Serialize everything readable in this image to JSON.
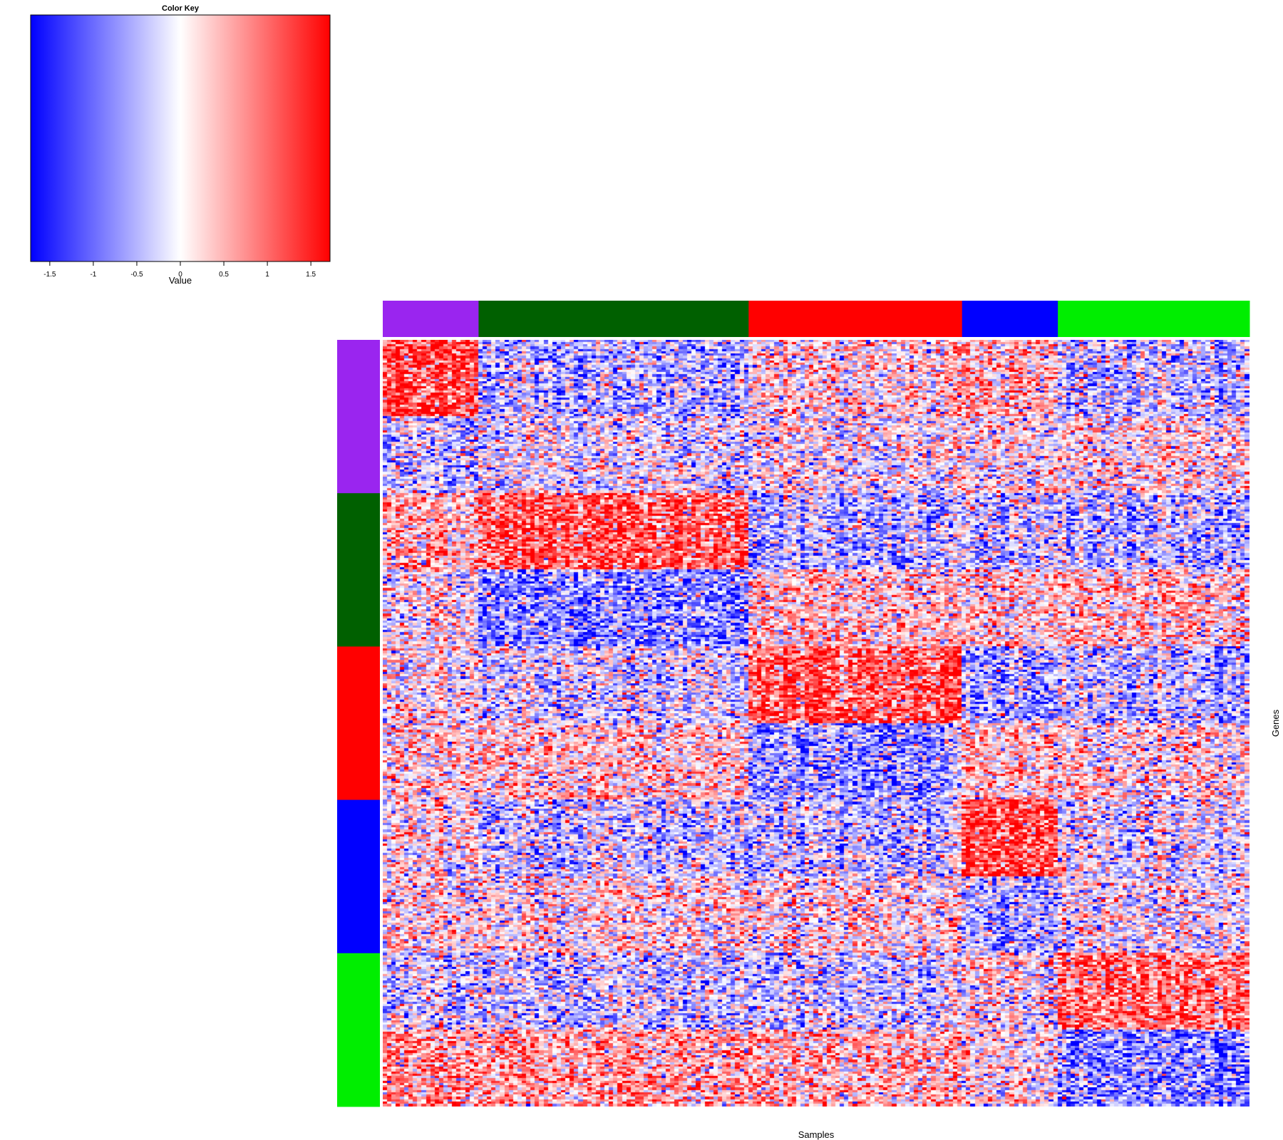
{
  "chart_data": {
    "type": "heatmap",
    "title": "",
    "xlabel": "Samples",
    "ylabel": "Genes",
    "color_key": {
      "title": "Color Key",
      "label": "Value",
      "range": [
        -1.72,
        1.72
      ],
      "ticks": [
        -1.5,
        -1,
        -0.5,
        0,
        0.5,
        1,
        1.5
      ],
      "tick_labels": [
        "-1.5",
        "-1",
        "-0.5",
        "0",
        "0.5",
        "1",
        "1.5"
      ],
      "colors": {
        "low": "#0000ff",
        "mid": "#ffffff",
        "high": "#ff0000"
      }
    },
    "column_groups": [
      {
        "id": "G1",
        "color": "#9a25ef",
        "n_samples": 22
      },
      {
        "id": "G2",
        "color": "#006000",
        "n_samples": 62
      },
      {
        "id": "G3",
        "color": "#ff0000",
        "n_samples": 49
      },
      {
        "id": "G4",
        "color": "#0000ff",
        "n_samples": 22
      },
      {
        "id": "G5",
        "color": "#00ee00",
        "n_samples": 44
      }
    ],
    "row_groups": [
      {
        "id": "G1",
        "color": "#9a25ef",
        "n_genes": 66,
        "upper_block_mean": [
          1.2,
          -0.5,
          0.25,
          0.5,
          -0.35
        ],
        "lower_block_mean": [
          -0.35,
          -0.15,
          0.0,
          0.05,
          0.2
        ]
      },
      {
        "id": "G2",
        "color": "#006000",
        "n_genes": 66,
        "upper_block_mean": [
          0.4,
          1.1,
          -0.45,
          -0.35,
          -0.4
        ],
        "lower_block_mean": [
          0.0,
          -0.8,
          0.35,
          0.3,
          0.4
        ]
      },
      {
        "id": "G3",
        "color": "#ff0000",
        "n_genes": 66,
        "upper_block_mean": [
          0.0,
          -0.25,
          1.15,
          -0.6,
          -0.35
        ],
        "lower_block_mean": [
          0.2,
          0.3,
          -0.65,
          0.35,
          0.2
        ]
      },
      {
        "id": "G4",
        "color": "#0000ff",
        "n_genes": 66,
        "upper_block_mean": [
          0.05,
          -0.35,
          -0.35,
          1.2,
          -0.05
        ],
        "lower_block_mean": [
          0.1,
          0.15,
          0.2,
          -0.55,
          0.0
        ]
      },
      {
        "id": "G5",
        "color": "#00ee00",
        "n_genes": 66,
        "upper_block_mean": [
          -0.3,
          -0.35,
          -0.25,
          0.1,
          1.0
        ],
        "lower_block_mean": [
          0.7,
          0.55,
          0.45,
          0.1,
          -0.75
        ]
      }
    ],
    "row_subblock_split": 0.5,
    "noise_sd": 0.75,
    "legend_position": "top-left"
  }
}
